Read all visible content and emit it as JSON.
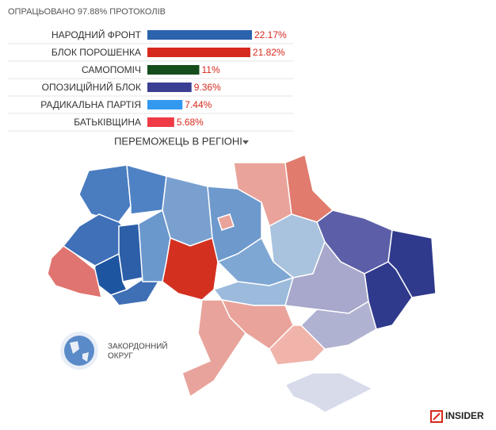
{
  "chart_data": {
    "type": "bar",
    "title": "ОПРАЦЬОВАНО 97.88% ПРОТОКОЛІВ",
    "categories": [
      "НАРОДНИЙ ФРОНТ",
      "БЛОК ПОРОШЕНКА",
      "САМОПОМІЧ",
      "ОПОЗИЦІЙНИЙ БЛОК",
      "РАДИКАЛЬНА ПАРТІЯ",
      "БАТЬКІВЩИНА"
    ],
    "values": [
      22.17,
      21.82,
      11,
      9.36,
      7.44,
      5.68
    ],
    "value_labels": [
      "22.17%",
      "21.82%",
      "11%",
      "9.36%",
      "7.44%",
      "5.68%"
    ],
    "colors": [
      "#2b63ad",
      "#d62a1e",
      "#154d1c",
      "#3a3f94",
      "#3399f0",
      "#ee3b45"
    ]
  },
  "map": {
    "title": "ПЕРЕМОЖЕЦЬ В РЕГІОНІ",
    "abroad_label": [
      "ЗАКОРДОННИЙ",
      "ОКРУГ"
    ]
  },
  "brand": "INSIDER"
}
